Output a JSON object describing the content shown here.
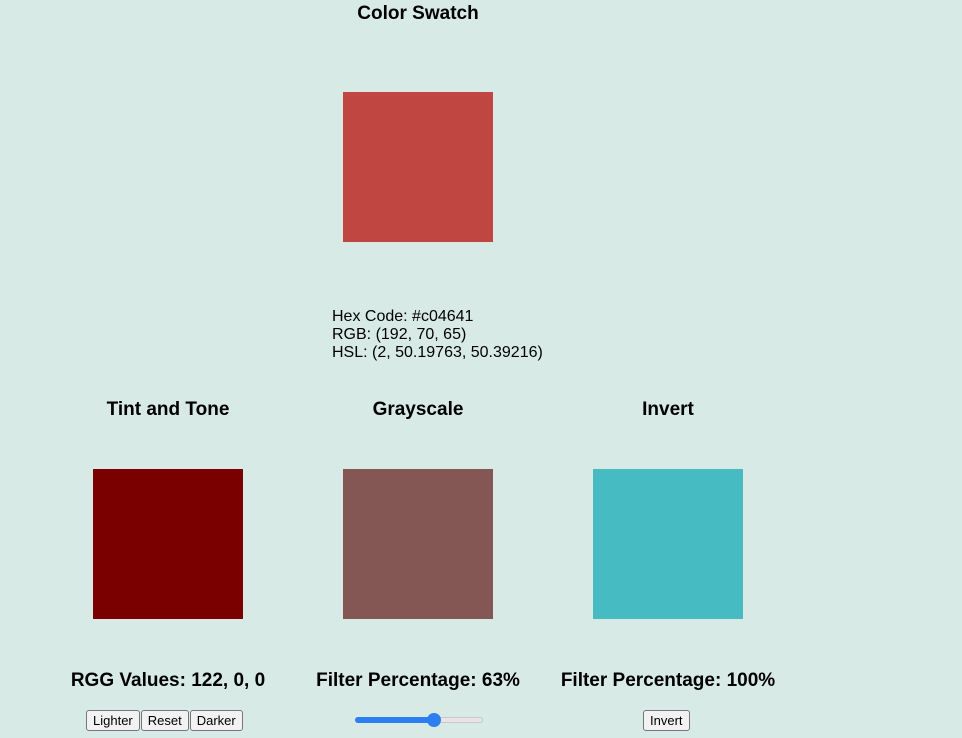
{
  "main": {
    "title": "Color Swatch",
    "swatch_color": "#c04641",
    "hex_line": "Hex Code: #c04641",
    "rgb_line": "RGB: (192, 70, 65)",
    "hsl_line": "HSL: (2, 50.19763, 50.39216)"
  },
  "tint": {
    "title": "Tint and Tone",
    "swatch_color": "#7a0000",
    "values_label": "RGG Values: 122, 0, 0",
    "buttons": {
      "lighter": "Lighter",
      "reset": "Reset",
      "darker": "Darker"
    }
  },
  "grayscale": {
    "title": "Grayscale",
    "swatch_color": "#845654",
    "filter_label": "Filter Percentage: 63%",
    "slider_value": 0.63
  },
  "invert": {
    "title": "Invert",
    "swatch_color": "#47bbc2",
    "filter_label": "Filter Percentage: 100%",
    "button_label": "Invert"
  },
  "colors": {
    "background": "#d8eae6",
    "slider_accent": "#2b7ff0"
  }
}
